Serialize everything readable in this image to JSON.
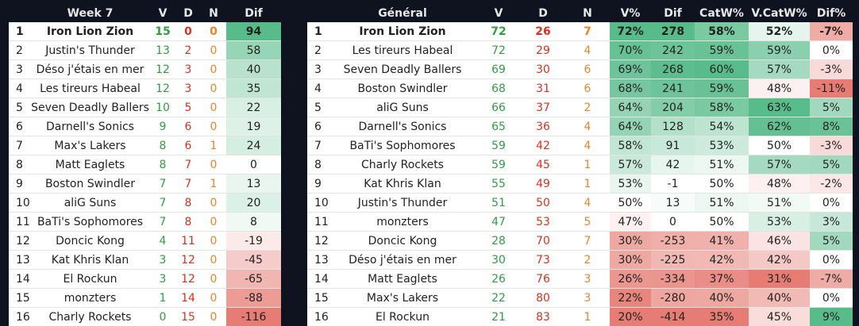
{
  "weekly": {
    "headers": [
      "",
      "Week 7",
      "V",
      "D",
      "N",
      "Dif"
    ],
    "rows": [
      {
        "rank": "1",
        "team": "Iron Lion Zion",
        "v": "15",
        "d": "0",
        "n": "0",
        "dif": "94"
      },
      {
        "rank": "2",
        "team": "Justin's Thunder",
        "v": "13",
        "d": "2",
        "n": "0",
        "dif": "58"
      },
      {
        "rank": "3",
        "team": "Déso j'étais en mer",
        "v": "12",
        "d": "3",
        "n": "0",
        "dif": "40"
      },
      {
        "rank": "4",
        "team": "Les tireurs Habeal",
        "v": "12",
        "d": "3",
        "n": "0",
        "dif": "35"
      },
      {
        "rank": "5",
        "team": "Seven Deadly Ballers",
        "v": "10",
        "d": "5",
        "n": "0",
        "dif": "22"
      },
      {
        "rank": "6",
        "team": "Darnell's Sonics",
        "v": "9",
        "d": "6",
        "n": "0",
        "dif": "19"
      },
      {
        "rank": "7",
        "team": "Max's Lakers",
        "v": "8",
        "d": "6",
        "n": "1",
        "dif": "24"
      },
      {
        "rank": "8",
        "team": "Matt Eaglets",
        "v": "8",
        "d": "7",
        "n": "0",
        "dif": "0"
      },
      {
        "rank": "9",
        "team": "Boston Swindler",
        "v": "7",
        "d": "7",
        "n": "1",
        "dif": "13"
      },
      {
        "rank": "10",
        "team": "aliG Suns",
        "v": "7",
        "d": "8",
        "n": "0",
        "dif": "20"
      },
      {
        "rank": "11",
        "team": "BaTi's Sophomores",
        "v": "7",
        "d": "8",
        "n": "0",
        "dif": "8"
      },
      {
        "rank": "12",
        "team": "Doncic Kong",
        "v": "4",
        "d": "11",
        "n": "0",
        "dif": "-19"
      },
      {
        "rank": "13",
        "team": "Kat Khris Klan",
        "v": "3",
        "d": "12",
        "n": "0",
        "dif": "-45"
      },
      {
        "rank": "14",
        "team": "El Rockun",
        "v": "3",
        "d": "12",
        "n": "0",
        "dif": "-65"
      },
      {
        "rank": "15",
        "team": "monzters",
        "v": "1",
        "d": "14",
        "n": "0",
        "dif": "-88"
      },
      {
        "rank": "16",
        "team": "Charly Rockets",
        "v": "0",
        "d": "15",
        "n": "0",
        "dif": "-116"
      }
    ]
  },
  "general": {
    "headers": [
      "",
      "Général",
      "V",
      "D",
      "N",
      "V%",
      "Dif",
      "CatW%",
      "V.CatW%",
      "Dif%"
    ],
    "rows": [
      {
        "rank": "1",
        "team": "Iron Lion Zion",
        "v": "72",
        "d": "26",
        "n": "7",
        "vpct": "72%",
        "dif": "278",
        "catw": "58%",
        "vcatw": "52%",
        "difpct": "-7%"
      },
      {
        "rank": "2",
        "team": "Les tireurs Habeal",
        "v": "72",
        "d": "29",
        "n": "4",
        "vpct": "70%",
        "dif": "242",
        "catw": "59%",
        "vcatw": "59%",
        "difpct": "0%"
      },
      {
        "rank": "3",
        "team": "Seven Deadly Ballers",
        "v": "69",
        "d": "30",
        "n": "6",
        "vpct": "69%",
        "dif": "268",
        "catw": "60%",
        "vcatw": "57%",
        "difpct": "-3%"
      },
      {
        "rank": "4",
        "team": "Boston Swindler",
        "v": "68",
        "d": "31",
        "n": "6",
        "vpct": "68%",
        "dif": "241",
        "catw": "59%",
        "vcatw": "48%",
        "difpct": "-11%"
      },
      {
        "rank": "5",
        "team": "aliG Suns",
        "v": "66",
        "d": "37",
        "n": "2",
        "vpct": "64%",
        "dif": "204",
        "catw": "58%",
        "vcatw": "63%",
        "difpct": "5%"
      },
      {
        "rank": "6",
        "team": "Darnell's Sonics",
        "v": "65",
        "d": "36",
        "n": "4",
        "vpct": "64%",
        "dif": "128",
        "catw": "54%",
        "vcatw": "62%",
        "difpct": "8%"
      },
      {
        "rank": "7",
        "team": "BaTi's Sophomores",
        "v": "59",
        "d": "42",
        "n": "4",
        "vpct": "58%",
        "dif": "91",
        "catw": "53%",
        "vcatw": "50%",
        "difpct": "-3%"
      },
      {
        "rank": "8",
        "team": "Charly Rockets",
        "v": "59",
        "d": "45",
        "n": "1",
        "vpct": "57%",
        "dif": "42",
        "catw": "51%",
        "vcatw": "57%",
        "difpct": "5%"
      },
      {
        "rank": "9",
        "team": "Kat Khris Klan",
        "v": "55",
        "d": "49",
        "n": "1",
        "vpct": "53%",
        "dif": "-1",
        "catw": "50%",
        "vcatw": "48%",
        "difpct": "-2%"
      },
      {
        "rank": "10",
        "team": "Justin's Thunder",
        "v": "51",
        "d": "50",
        "n": "4",
        "vpct": "50%",
        "dif": "13",
        "catw": "51%",
        "vcatw": "51%",
        "difpct": "0%"
      },
      {
        "rank": "11",
        "team": "monzters",
        "v": "47",
        "d": "53",
        "n": "5",
        "vpct": "47%",
        "dif": "0",
        "catw": "50%",
        "vcatw": "53%",
        "difpct": "3%"
      },
      {
        "rank": "12",
        "team": "Doncic Kong",
        "v": "28",
        "d": "70",
        "n": "7",
        "vpct": "30%",
        "dif": "-253",
        "catw": "41%",
        "vcatw": "46%",
        "difpct": "5%"
      },
      {
        "rank": "13",
        "team": "Déso j'étais en mer",
        "v": "30",
        "d": "73",
        "n": "2",
        "vpct": "30%",
        "dif": "-225",
        "catw": "42%",
        "vcatw": "42%",
        "difpct": "0%"
      },
      {
        "rank": "14",
        "team": "Matt Eaglets",
        "v": "26",
        "d": "76",
        "n": "3",
        "vpct": "26%",
        "dif": "-334",
        "catw": "37%",
        "vcatw": "31%",
        "difpct": "-7%"
      },
      {
        "rank": "15",
        "team": "Max's Lakers",
        "v": "22",
        "d": "80",
        "n": "3",
        "vpct": "22%",
        "dif": "-280",
        "catw": "40%",
        "vcatw": "40%",
        "difpct": "0%"
      },
      {
        "rank": "16",
        "team": "El Rockun",
        "v": "21",
        "d": "83",
        "n": "1",
        "vpct": "20%",
        "dif": "-414",
        "catw": "35%",
        "vcatw": "45%",
        "difpct": "9%"
      }
    ]
  },
  "colors": {
    "background": "#0f1320",
    "win_text": "#2f9e44",
    "loss_text": "#d9331f",
    "draw_text": "#e8852c",
    "positive_scale": "#57bb8a",
    "negative_scale": "#e67c73"
  }
}
